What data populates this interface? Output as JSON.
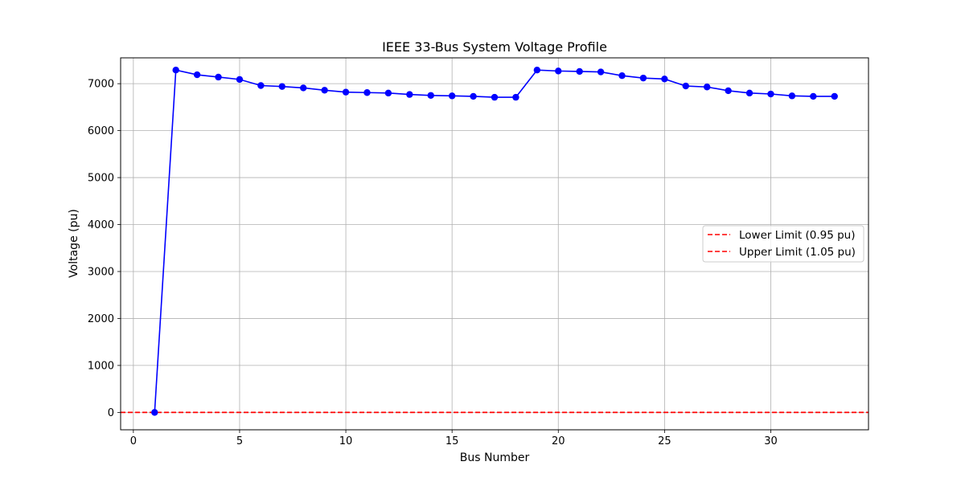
{
  "chart_data": {
    "type": "line",
    "title": "IEEE 33-Bus System Voltage Profile",
    "xlabel": "Bus Number",
    "ylabel": "Voltage (pu)",
    "xlim": [
      -0.6,
      34.6
    ],
    "ylim": [
      -370,
      7550
    ],
    "xticks": [
      0,
      5,
      10,
      15,
      20,
      25,
      30
    ],
    "yticks": [
      0,
      1000,
      2000,
      3000,
      4000,
      5000,
      6000,
      7000
    ],
    "grid": true,
    "legend_position": "center-right",
    "series": [
      {
        "color": "#0000ff",
        "marker": "circle",
        "x": [
          1,
          2,
          3,
          4,
          5,
          6,
          7,
          8,
          9,
          10,
          11,
          12,
          13,
          14,
          15,
          16,
          17,
          18,
          19,
          20,
          21,
          22,
          23,
          24,
          25,
          26,
          27,
          28,
          29,
          30,
          31,
          32,
          33
        ],
        "values": [
          0,
          7290,
          7190,
          7140,
          7090,
          6960,
          6940,
          6910,
          6860,
          6820,
          6810,
          6800,
          6770,
          6750,
          6740,
          6730,
          6710,
          6710,
          7290,
          7270,
          7260,
          7250,
          7170,
          7120,
          7100,
          6950,
          6930,
          6850,
          6800,
          6780,
          6740,
          6730,
          6730
        ]
      }
    ],
    "reference_lines": [
      {
        "name": "Lower Limit (0.95 pu)",
        "value": 0.95,
        "color": "#ff0000",
        "style": "dashed"
      },
      {
        "name": "Upper Limit (1.05 pu)",
        "value": 1.05,
        "color": "#ff0000",
        "style": "dashed"
      }
    ]
  }
}
